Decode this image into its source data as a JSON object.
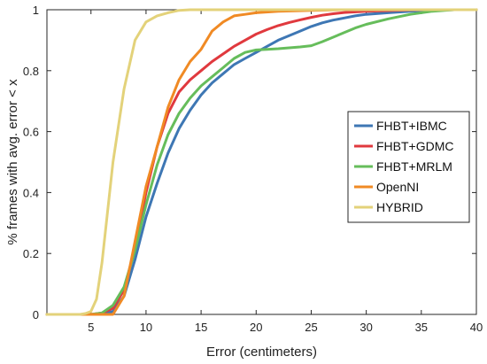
{
  "chart_data": {
    "type": "line",
    "xlabel": "Error (centimeters)",
    "ylabel": "% frames with avg. error < x",
    "xlim": [
      1,
      40
    ],
    "ylim": [
      0,
      1
    ],
    "xticks": [
      5,
      10,
      15,
      20,
      25,
      30,
      35,
      40
    ],
    "yticks": [
      0,
      0.2,
      0.4,
      0.6,
      0.8,
      1
    ],
    "grid": false,
    "legend_position": "right",
    "series": [
      {
        "name": "FHBT+IBMC",
        "color": "#3e77b4",
        "x": [
          1,
          4,
          5,
          6,
          7,
          8,
          9,
          10,
          11,
          12,
          13,
          14,
          15,
          16,
          17,
          18,
          19,
          20,
          21,
          22,
          23,
          24,
          25,
          26,
          27,
          28,
          29,
          30,
          32,
          34,
          36,
          38,
          40
        ],
        "y": [
          0,
          0,
          0,
          0,
          0.01,
          0.06,
          0.18,
          0.32,
          0.43,
          0.53,
          0.61,
          0.67,
          0.72,
          0.76,
          0.79,
          0.82,
          0.84,
          0.86,
          0.88,
          0.9,
          0.915,
          0.93,
          0.945,
          0.957,
          0.966,
          0.973,
          0.98,
          0.985,
          0.99,
          0.995,
          0.998,
          1,
          1
        ]
      },
      {
        "name": "FHBT+GDMC",
        "color": "#e0393e",
        "x": [
          1,
          4,
          5,
          6,
          7,
          8,
          9,
          10,
          11,
          12,
          13,
          14,
          15,
          16,
          17,
          18,
          19,
          20,
          21,
          22,
          23,
          24,
          25,
          26,
          27,
          28,
          30,
          32,
          34,
          36,
          38,
          40
        ],
        "y": [
          0,
          0,
          0,
          0.005,
          0.02,
          0.08,
          0.22,
          0.4,
          0.55,
          0.66,
          0.73,
          0.77,
          0.8,
          0.83,
          0.855,
          0.88,
          0.9,
          0.92,
          0.935,
          0.948,
          0.958,
          0.967,
          0.975,
          0.982,
          0.987,
          0.991,
          0.995,
          0.997,
          0.999,
          1,
          1,
          1
        ]
      },
      {
        "name": "FHBT+MRLM",
        "color": "#66bd5b",
        "x": [
          1,
          4,
          5,
          6,
          7,
          8,
          9,
          10,
          11,
          12,
          13,
          14,
          15,
          16,
          17,
          18,
          19,
          20,
          21,
          22,
          23,
          24,
          25,
          26,
          27,
          28,
          29,
          30,
          32,
          34,
          36,
          38,
          40
        ],
        "y": [
          0,
          0,
          0,
          0.005,
          0.03,
          0.09,
          0.21,
          0.36,
          0.49,
          0.59,
          0.66,
          0.71,
          0.75,
          0.78,
          0.81,
          0.84,
          0.86,
          0.868,
          0.87,
          0.872,
          0.875,
          0.878,
          0.882,
          0.895,
          0.91,
          0.925,
          0.94,
          0.952,
          0.97,
          0.985,
          0.995,
          1,
          1
        ]
      },
      {
        "name": "OpenNI",
        "color": "#f08a24",
        "x": [
          1,
          5,
          6,
          7,
          8,
          9,
          10,
          11,
          12,
          13,
          14,
          15,
          16,
          17,
          18,
          19,
          20,
          22,
          25,
          28,
          30,
          35,
          40
        ],
        "y": [
          0,
          0,
          0,
          0,
          0.06,
          0.24,
          0.42,
          0.55,
          0.68,
          0.77,
          0.83,
          0.87,
          0.93,
          0.96,
          0.98,
          0.985,
          0.99,
          0.995,
          0.998,
          1,
          1,
          1,
          1
        ]
      },
      {
        "name": "HYBRID",
        "color": "#e3d27a",
        "x": [
          1,
          4,
          4.5,
          5,
          5.5,
          6,
          7,
          8,
          9,
          10,
          11,
          12,
          13,
          14,
          16,
          20,
          30,
          40
        ],
        "y": [
          0,
          0,
          0.003,
          0.01,
          0.05,
          0.17,
          0.5,
          0.74,
          0.9,
          0.96,
          0.98,
          0.99,
          0.998,
          1,
          1,
          1,
          1,
          1
        ]
      }
    ]
  }
}
